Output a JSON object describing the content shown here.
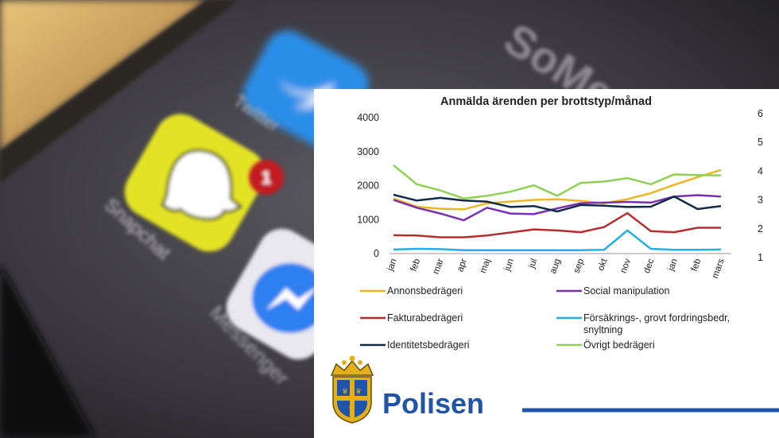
{
  "background": {
    "apps": [
      {
        "name": "Twitter",
        "icon": "twitter-bird-icon",
        "color": "#2a8ee8"
      },
      {
        "name": "Snapchat",
        "icon": "ghost-icon",
        "color": "#e3e328",
        "badge": "1"
      },
      {
        "name": "Messenger",
        "icon": "messenger-bolt-icon",
        "color": "#2f7ff0"
      }
    ],
    "corner_text": "SoMe"
  },
  "chart_data": {
    "type": "line",
    "title": "Anmälda ärenden per brottstyp/månad",
    "categories": [
      "jan",
      "feb",
      "mar",
      "apr",
      "maj",
      "jun",
      "jul",
      "aug",
      "sep",
      "okt",
      "nov",
      "dec",
      "jan",
      "feb",
      "mars"
    ],
    "ylim": [
      0,
      4000
    ],
    "yticks": [
      "0",
      "1000",
      "2000",
      "3000",
      "4000"
    ],
    "secondary_yticks": [
      "1",
      "2",
      "3",
      "4",
      "5",
      "6"
    ],
    "grid": false,
    "legend_position": "bottom",
    "series": [
      {
        "name": "Annonsbedrägeri",
        "color": "#f0b429",
        "values": [
          1620,
          1380,
          1320,
          1300,
          1480,
          1530,
          1580,
          1600,
          1550,
          1480,
          1600,
          1780,
          2020,
          2250,
          2460
        ]
      },
      {
        "name": "Social manipulation",
        "color": "#7a2fb5",
        "values": [
          1580,
          1350,
          1180,
          980,
          1350,
          1180,
          1160,
          1330,
          1480,
          1500,
          1520,
          1500,
          1680,
          1720,
          1680
        ]
      },
      {
        "name": "Fakturabedrägeri",
        "color": "#b22f2f",
        "values": [
          540,
          530,
          480,
          480,
          530,
          620,
          710,
          680,
          630,
          780,
          1190,
          660,
          630,
          760,
          760
        ]
      },
      {
        "name": "Försäkrings-, grovt fordringsbedr, snyltning",
        "color": "#22b0e8",
        "values": [
          120,
          140,
          130,
          100,
          100,
          100,
          100,
          100,
          100,
          110,
          680,
          140,
          110,
          110,
          120
        ]
      },
      {
        "name": "Identitetsbedrägeri",
        "color": "#102a48",
        "values": [
          1730,
          1560,
          1640,
          1560,
          1530,
          1370,
          1400,
          1240,
          1430,
          1410,
          1370,
          1380,
          1680,
          1310,
          1400
        ]
      },
      {
        "name": "Övrigt bedrägeri",
        "color": "#8fd054",
        "values": [
          2600,
          2040,
          1860,
          1620,
          1700,
          1820,
          2010,
          1700,
          2080,
          2120,
          2220,
          2040,
          2330,
          2310,
          2300
        ]
      }
    ]
  },
  "brand": {
    "name": "Polisen"
  }
}
